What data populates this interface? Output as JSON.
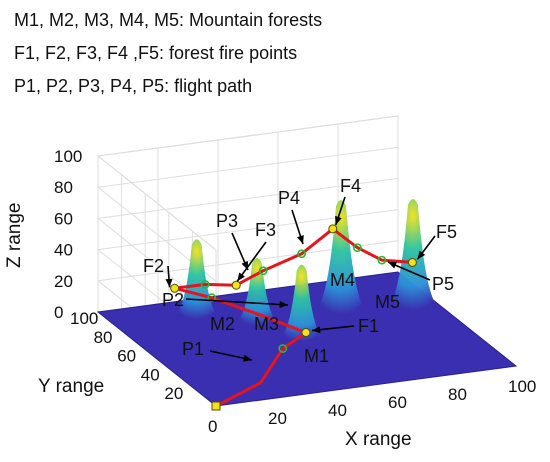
{
  "legend": {
    "line1": "M1, M2, M3, M4, M5: Mountain forests",
    "line2": "F1, F2, F3, F4 ,F5:  forest fire points",
    "line3": "P1, P2, P3, P4, P5:  flight path"
  },
  "colors": {
    "floor": "#3a2fb0",
    "path": "#e8141c",
    "waypoint": "#22bb33",
    "fire_point": "#f2e21a",
    "mountain_low": "#2d8fd8",
    "mountain_mid": "#2fc4a0",
    "mountain_high": "#f5e11c"
  },
  "chart_data": {
    "type": "surface",
    "title": "",
    "xlabel": "X range",
    "ylabel": "Y range",
    "zlabel": "Z range",
    "xlim": [
      0,
      100
    ],
    "ylim": [
      0,
      100
    ],
    "zlim": [
      0,
      100
    ],
    "x_ticks": [
      "0",
      "20",
      "40",
      "60",
      "80",
      "100"
    ],
    "y_ticks": [
      "20",
      "40",
      "60",
      "80",
      "100"
    ],
    "z_ticks": [
      "0",
      "20",
      "40",
      "60",
      "80",
      "100"
    ],
    "grid": true,
    "mountains": [
      {
        "name": "M1",
        "x": 49,
        "y": 52,
        "height": 48
      },
      {
        "name": "M2",
        "x": 27,
        "y": 85,
        "height": 50
      },
      {
        "name": "M3",
        "x": 42,
        "y": 72,
        "height": 42
      },
      {
        "name": "M4",
        "x": 70,
        "y": 72,
        "height": 72
      },
      {
        "name": "M5",
        "x": 92,
        "y": 67,
        "height": 70
      }
    ],
    "fire_points": [
      {
        "name": "F1",
        "x": 52,
        "y": 56,
        "z": 0
      },
      {
        "name": "F2",
        "x": 22,
        "y": 91,
        "z": 15
      },
      {
        "name": "F3",
        "x": 39,
        "y": 82,
        "z": 18
      },
      {
        "name": "F4",
        "x": 70,
        "y": 79,
        "z": 48
      },
      {
        "name": "F5",
        "x": 93,
        "y": 70,
        "z": 26
      }
    ],
    "flight_path": [
      {
        "x": 0,
        "y": 0,
        "z": 0
      },
      {
        "x": 20,
        "y": 13,
        "z": 2
      },
      {
        "x": 38,
        "y": 40,
        "z": 3
      },
      {
        "x": 52,
        "y": 56,
        "z": 0
      },
      {
        "x": 43,
        "y": 72,
        "z": 4
      },
      {
        "x": 32,
        "y": 85,
        "z": 10
      },
      {
        "x": 22,
        "y": 91,
        "z": 15
      },
      {
        "x": 31,
        "y": 88,
        "z": 17
      },
      {
        "x": 39,
        "y": 82,
        "z": 18
      },
      {
        "x": 48,
        "y": 82,
        "z": 25
      },
      {
        "x": 60,
        "y": 80,
        "z": 34
      },
      {
        "x": 70,
        "y": 79,
        "z": 48
      },
      {
        "x": 77,
        "y": 76,
        "z": 36
      },
      {
        "x": 84,
        "y": 73,
        "z": 28
      },
      {
        "x": 93,
        "y": 70,
        "z": 26
      }
    ],
    "waypoints": [
      {
        "x": 38,
        "y": 40,
        "z": 3
      },
      {
        "x": 32,
        "y": 85,
        "z": 10
      },
      {
        "x": 31,
        "y": 88,
        "z": 17
      },
      {
        "x": 48,
        "y": 82,
        "z": 25
      },
      {
        "x": 60,
        "y": 80,
        "z": 34
      },
      {
        "x": 77,
        "y": 76,
        "z": 36
      },
      {
        "x": 84,
        "y": 73,
        "z": 28
      }
    ],
    "start_point": {
      "x": 0,
      "y": 0,
      "z": 0
    },
    "annotations": {
      "fire": [
        "F1",
        "F2",
        "F3",
        "F4",
        "F5"
      ],
      "path": [
        "P1",
        "P2",
        "P3",
        "P4",
        "P5"
      ],
      "mountain": [
        "M1",
        "M2",
        "M3",
        "M4",
        "M5"
      ]
    }
  }
}
